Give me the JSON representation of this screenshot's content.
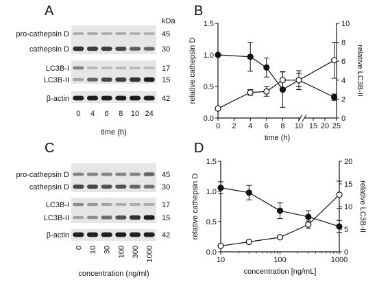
{
  "colors": {
    "ink": "#111111",
    "blot_bg": "#e6e6e6",
    "band_dark": "#1a1a1a",
    "hollow_marker": "#ffffff"
  },
  "panels": {
    "A": {
      "letter": "A",
      "kda_label": "kDa",
      "rows": [
        {
          "label": "pro-cathepsin D",
          "kda": "45",
          "intensity": [
            0.25,
            0.25,
            0.25,
            0.25,
            0.22,
            0.22
          ]
        },
        {
          "label": "cathepsin D",
          "kda": "30",
          "intensity": [
            0.85,
            0.8,
            0.8,
            0.75,
            0.65,
            0.6
          ]
        },
        {
          "label": "LC3B-I",
          "kda": "17",
          "intensity": [
            0.45,
            0.2,
            0.2,
            0.2,
            0.2,
            0.2
          ]
        },
        {
          "label": "LC3B-II",
          "kda": "15",
          "intensity": [
            0.3,
            0.6,
            0.75,
            0.8,
            0.85,
            0.95
          ]
        },
        {
          "label": "β-actin",
          "kda": "42",
          "intensity": [
            0.95,
            0.95,
            0.95,
            0.95,
            0.95,
            0.95
          ]
        }
      ],
      "lanes": [
        "0",
        "4",
        "6",
        "8",
        "10",
        "24"
      ],
      "xlabel": "time (h)"
    },
    "C": {
      "letter": "C",
      "kda_label": "",
      "rows": [
        {
          "label": "pro-cathepsin D",
          "kda": "45",
          "intensity": [
            0.45,
            0.45,
            0.45,
            0.45,
            0.45,
            0.6
          ]
        },
        {
          "label": "cathepsin D",
          "kda": "30",
          "intensity": [
            0.75,
            0.75,
            0.7,
            0.7,
            0.6,
            0.55
          ]
        },
        {
          "label": "LC3B-I",
          "kda": "17",
          "intensity": [
            0.4,
            0.35,
            0.3,
            0.25,
            0.25,
            0.25
          ]
        },
        {
          "label": "LC3B-II",
          "kda": "15",
          "intensity": [
            0.3,
            0.4,
            0.55,
            0.7,
            0.85,
            0.95
          ]
        },
        {
          "label": "β-actin",
          "kda": "42",
          "intensity": [
            0.95,
            0.95,
            0.95,
            0.95,
            0.95,
            0.95
          ]
        }
      ],
      "lanes": [
        "0",
        "10",
        "30",
        "100",
        "300",
        "1000"
      ],
      "xlabel": "concentration (ng/ml)"
    }
  },
  "chart_data": [
    {
      "panel": "B",
      "type": "line",
      "xlabel": "time (h)",
      "ylabel": "relative cathepsin D",
      "ylabel_right": "relative LC3B-II",
      "axis_break": "x axis broken between 10 and 15",
      "xticks": [
        "0",
        "2",
        "4",
        "6",
        "8",
        "10",
        "15",
        "20",
        "25"
      ],
      "xlim": [
        0,
        25
      ],
      "ylim": [
        0,
        1.5
      ],
      "yticks": [
        "0.0",
        "0.5",
        "1.0",
        "1.5"
      ],
      "ylim_right": [
        0,
        10
      ],
      "yticks_right": [
        "0",
        "2",
        "4",
        "6",
        "8",
        "10"
      ],
      "series": [
        {
          "marker": "filled circle",
          "axis": "left",
          "x": [
            0,
            4,
            6,
            8,
            10,
            24
          ],
          "y": [
            1.0,
            0.97,
            0.8,
            0.45,
            0.6,
            0.33
          ],
          "err": [
            0.0,
            0.23,
            0.15,
            0.28,
            0.15,
            0.05
          ]
        },
        {
          "marker": "open circle",
          "axis": "right",
          "x": [
            0,
            4,
            6,
            8,
            10,
            24
          ],
          "y": [
            1.0,
            2.7,
            2.8,
            4.0,
            4.0,
            6.1
          ],
          "err": [
            0.0,
            0.3,
            0.5,
            0.9,
            0.7,
            1.9
          ]
        }
      ]
    },
    {
      "panel": "D",
      "type": "line",
      "xlabel": "concentration [ng/mL]",
      "ylabel": "relative cathepsin D",
      "ylabel_right": "relative LC3B-II",
      "xscale": "log",
      "xticks": [
        "10",
        "100",
        "1000"
      ],
      "xlim": [
        10,
        1000
      ],
      "ylim": [
        0,
        1.5
      ],
      "yticks": [
        "0.0",
        "0.5",
        "1.0",
        "1.5"
      ],
      "ylim_right": [
        0,
        20
      ],
      "yticks_right": [
        "0",
        "5",
        "10",
        "15",
        "20"
      ],
      "series": [
        {
          "marker": "filled circle",
          "axis": "left",
          "x": [
            10,
            30,
            100,
            300,
            1000
          ],
          "y": [
            1.06,
            0.98,
            0.68,
            0.58,
            0.42
          ],
          "err": [
            0.1,
            0.12,
            0.13,
            0.1,
            0.1
          ]
        },
        {
          "marker": "open circle",
          "axis": "right",
          "x": [
            10,
            30,
            100,
            300,
            1000
          ],
          "y": [
            1.3,
            2.2,
            3.2,
            6.0,
            12.6
          ],
          "err": [
            0.2,
            0.2,
            0.2,
            0.8,
            3.0
          ]
        }
      ]
    }
  ]
}
